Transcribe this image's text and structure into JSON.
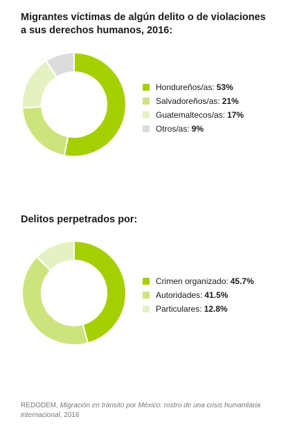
{
  "chart_data": [
    {
      "type": "pie",
      "title": "Migrantes víctimas de algún delito o de violaciones a sus derechos humanos, 2016:",
      "categories": [
        "Hondureños/as:",
        "Salvadoreños/as:",
        "Guatemaltecos/as:",
        "Otros/as:"
      ],
      "values": [
        53,
        21,
        17,
        9
      ],
      "value_labels": [
        "53%",
        "21%",
        "17%",
        "9%"
      ],
      "colors": [
        "#a6cf00",
        "#cde47e",
        "#e5f1c2",
        "#dcdcdc"
      ],
      "legend": "right"
    },
    {
      "type": "pie",
      "title": "Delitos perpetrados por:",
      "categories": [
        "Crimen organizado:",
        "Autoridades:",
        "Particulares:"
      ],
      "values": [
        45.7,
        41.5,
        12.8
      ],
      "value_labels": [
        "45.7%",
        "41.5%",
        "12.8%"
      ],
      "colors": [
        "#a6cf00",
        "#cde47e",
        "#e5f1c2"
      ],
      "legend": "right"
    }
  ],
  "source": {
    "prefix": "REDODEM, ",
    "title": "Migración en tránsito por México: rostro de una crisis humanitaria internacional",
    "suffix": ", 2016"
  }
}
